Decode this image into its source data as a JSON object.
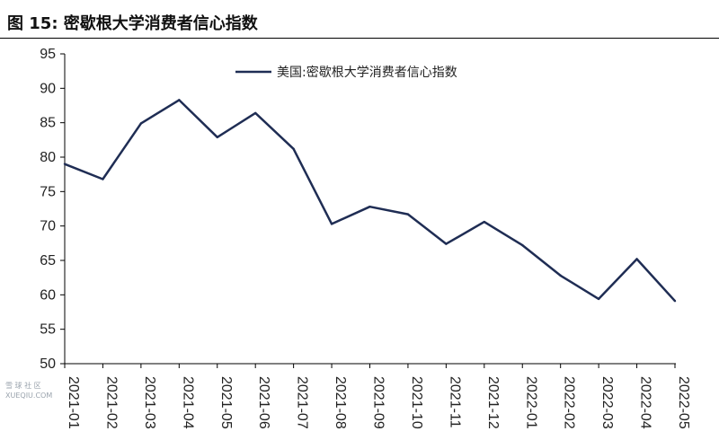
{
  "figure_title": "图 15:  密歇根大学消费者信心指数",
  "watermark": {
    "line1": "雪 球 社 区",
    "line2": "XUEQIU.COM"
  },
  "colors": {
    "series": "#1f2d54",
    "axis": "#000000"
  },
  "chart_data": {
    "type": "line",
    "title": "",
    "xlabel": "",
    "ylabel": "",
    "ylim": [
      50,
      95
    ],
    "yticks": [
      50,
      55,
      60,
      65,
      70,
      75,
      80,
      85,
      90,
      95
    ],
    "grid": false,
    "legend_position": "top-center",
    "categories": [
      "2021-01",
      "2021-02",
      "2021-03",
      "2021-04",
      "2021-05",
      "2021-06",
      "2021-07",
      "2021-08",
      "2021-09",
      "2021-10",
      "2021-11",
      "2021-12",
      "2022-01",
      "2022-02",
      "2022-03",
      "2022-04",
      "2022-05"
    ],
    "series": [
      {
        "name": "美国:密歇根大学消费者信心指数",
        "values": [
          79.0,
          76.8,
          84.9,
          88.3,
          82.9,
          86.4,
          81.2,
          70.3,
          72.8,
          71.7,
          67.4,
          70.6,
          67.2,
          62.8,
          59.4,
          65.2,
          59.1
        ]
      }
    ]
  }
}
